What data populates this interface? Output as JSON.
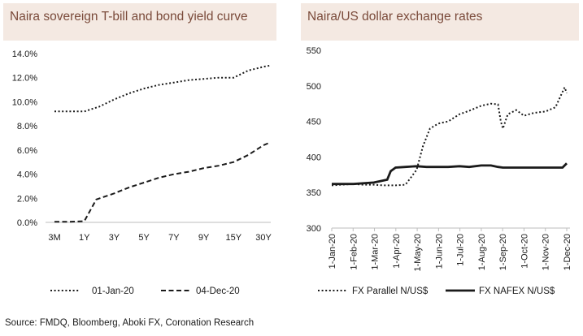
{
  "charts": {
    "left": {
      "title": "Naira sovereign T-bill and bond yield curve"
    },
    "right": {
      "title": "Naira/US dollar exchange rates"
    }
  },
  "source": "Source: FMDQ, Bloomberg, Aboki FX, Coronation Research",
  "chart_data": [
    {
      "type": "line",
      "title": "Naira sovereign T-bill and bond yield curve",
      "xlabel": "",
      "ylabel": "",
      "categories": [
        "3M",
        "1Y",
        "3Y",
        "5Y",
        "7Y",
        "9Y",
        "15Y",
        "30Y"
      ],
      "y_ticks": [
        "0.0%",
        "2.0%",
        "4.0%",
        "6.0%",
        "8.0%",
        "10.0%",
        "12.0%",
        "14.0%"
      ],
      "ylim": [
        0,
        14
      ],
      "grid": false,
      "legend": "bottom",
      "series": [
        {
          "name": "01-Jan-20",
          "style": "dotted",
          "points": [
            [
              0,
              9.2
            ],
            [
              0.5,
              9.2
            ],
            [
              1,
              9.2
            ],
            [
              1.5,
              9.6
            ],
            [
              2,
              10.2
            ],
            [
              2.5,
              10.7
            ],
            [
              3,
              11.1
            ],
            [
              3.5,
              11.4
            ],
            [
              4,
              11.6
            ],
            [
              4.5,
              11.8
            ],
            [
              5,
              11.9
            ],
            [
              5.5,
              12.0
            ],
            [
              6,
              12.0
            ],
            [
              6.5,
              12.6
            ],
            [
              7,
              12.9
            ],
            [
              7.2,
              13.0
            ]
          ]
        },
        {
          "name": "04-Dec-20",
          "style": "dashed",
          "points": [
            [
              0,
              0.05
            ],
            [
              0.5,
              0.05
            ],
            [
              1,
              0.1
            ],
            [
              1.4,
              1.9
            ],
            [
              2,
              2.4
            ],
            [
              2.5,
              2.9
            ],
            [
              3,
              3.3
            ],
            [
              3.5,
              3.7
            ],
            [
              4,
              4.0
            ],
            [
              4.5,
              4.2
            ],
            [
              5,
              4.5
            ],
            [
              5.5,
              4.7
            ],
            [
              6,
              5.0
            ],
            [
              6.5,
              5.6
            ],
            [
              7,
              6.4
            ],
            [
              7.2,
              6.6
            ]
          ]
        }
      ]
    },
    {
      "type": "line",
      "title": "Naira/US dollar exchange rates",
      "xlabel": "",
      "ylabel": "",
      "x_ticks": [
        "1-Jan-20",
        "1-Feb-20",
        "1-Mar-20",
        "1-Apr-20",
        "1-May-20",
        "1-Jun-20",
        "1-Jul-20",
        "1-Aug-20",
        "1-Sep-20",
        "1-Oct-20",
        "1-Nov-20",
        "1-Dec-20"
      ],
      "y_ticks": [
        "300",
        "350",
        "400",
        "450",
        "500",
        "550"
      ],
      "ylim": [
        300,
        550
      ],
      "grid": false,
      "legend": "bottom",
      "series": [
        {
          "name": "FX Parallel N/US$",
          "style": "dotted",
          "points": [
            [
              "2020-01-01",
              360
            ],
            [
              "2020-01-15",
              361
            ],
            [
              "2020-02-01",
              362
            ],
            [
              "2020-02-15",
              361
            ],
            [
              "2020-03-01",
              361
            ],
            [
              "2020-03-15",
              360
            ],
            [
              "2020-04-01",
              360
            ],
            [
              "2020-04-15",
              361
            ],
            [
              "2020-04-22",
              370
            ],
            [
              "2020-05-01",
              382
            ],
            [
              "2020-05-10",
              415
            ],
            [
              "2020-05-20",
              440
            ],
            [
              "2020-06-01",
              447
            ],
            [
              "2020-06-15",
              450
            ],
            [
              "2020-07-01",
              460
            ],
            [
              "2020-07-15",
              465
            ],
            [
              "2020-08-01",
              472
            ],
            [
              "2020-08-15",
              475
            ],
            [
              "2020-08-25",
              474
            ],
            [
              "2020-08-29",
              450
            ],
            [
              "2020-09-01",
              440
            ],
            [
              "2020-09-08",
              460
            ],
            [
              "2020-09-20",
              466
            ],
            [
              "2020-10-01",
              458
            ],
            [
              "2020-10-15",
              462
            ],
            [
              "2020-11-01",
              464
            ],
            [
              "2020-11-15",
              470
            ],
            [
              "2020-11-22",
              485
            ],
            [
              "2020-11-28",
              498
            ],
            [
              "2020-12-01",
              490
            ]
          ]
        },
        {
          "name": "FX NAFEX N/US$",
          "style": "solid",
          "points": [
            [
              "2020-01-01",
              362
            ],
            [
              "2020-02-01",
              362
            ],
            [
              "2020-03-01",
              364
            ],
            [
              "2020-03-20",
              368
            ],
            [
              "2020-03-25",
              380
            ],
            [
              "2020-04-01",
              385
            ],
            [
              "2020-04-15",
              386
            ],
            [
              "2020-05-01",
              387
            ],
            [
              "2020-05-15",
              386
            ],
            [
              "2020-06-01",
              386
            ],
            [
              "2020-06-15",
              386
            ],
            [
              "2020-07-01",
              387
            ],
            [
              "2020-07-15",
              386
            ],
            [
              "2020-08-01",
              388
            ],
            [
              "2020-08-15",
              388
            ],
            [
              "2020-08-25",
              386
            ],
            [
              "2020-09-01",
              385
            ],
            [
              "2020-10-01",
              385
            ],
            [
              "2020-11-01",
              385
            ],
            [
              "2020-11-25",
              385
            ],
            [
              "2020-12-01",
              391
            ]
          ]
        }
      ]
    }
  ],
  "colors": {
    "title_bg": "#f4e9e2",
    "title_text": "#7a4a3a",
    "line": "#1a1a1a",
    "axis": "#bdbdbd"
  }
}
